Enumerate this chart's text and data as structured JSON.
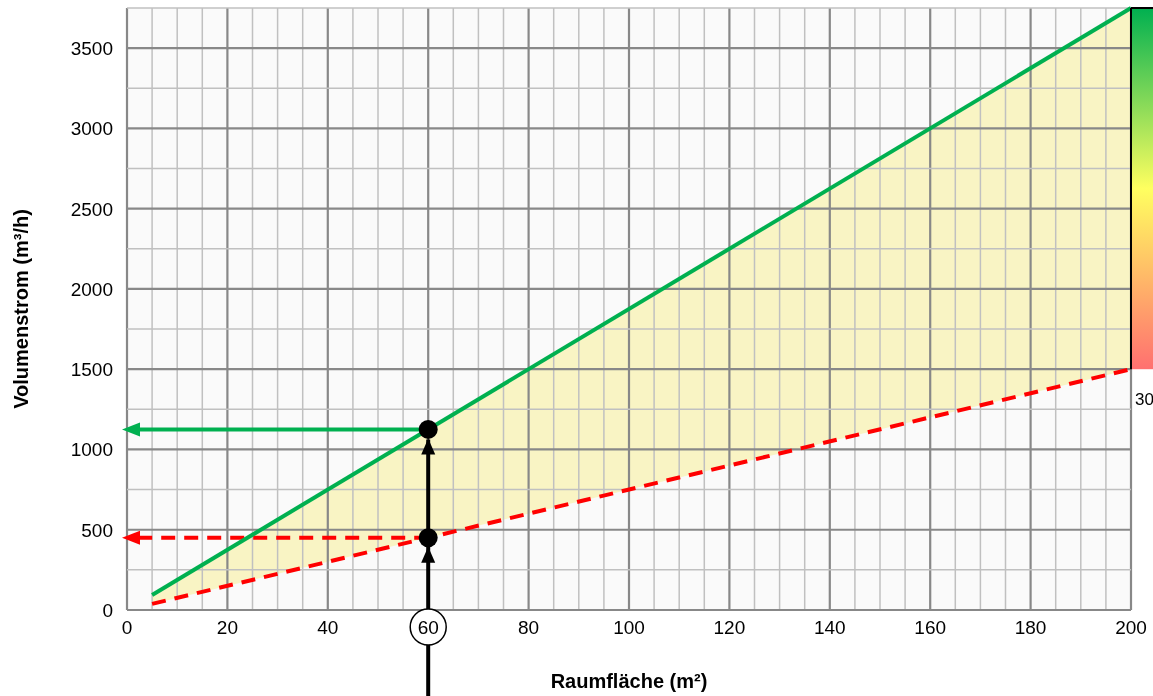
{
  "chart_data": {
    "type": "line",
    "xlabel": "Raumfläche (m²)",
    "ylabel": "Volumenstrom (m³/h)",
    "xlim": [
      0,
      200
    ],
    "ylim": [
      0,
      3750
    ],
    "xticks": [
      0,
      {
        "value": 5,
        "label": null
      },
      {
        "value": 10,
        "label": null
      },
      {
        "value": 15,
        "label": null
      },
      20,
      {
        "value": 25,
        "label": null
      },
      {
        "value": 30,
        "label": null
      },
      {
        "value": 35,
        "label": null
      },
      40,
      {
        "value": 45,
        "label": null
      },
      {
        "value": 50,
        "label": null
      },
      {
        "value": 55,
        "label": null
      },
      60,
      {
        "value": 65,
        "label": null
      },
      {
        "value": 70,
        "label": null
      },
      {
        "value": 75,
        "label": null
      },
      80,
      {
        "value": 85,
        "label": null
      },
      {
        "value": 90,
        "label": null
      },
      {
        "value": 95,
        "label": null
      },
      100,
      {
        "value": 105,
        "label": null
      },
      {
        "value": 110,
        "label": null
      },
      {
        "value": 115,
        "label": null
      },
      120,
      {
        "value": 125,
        "label": null
      },
      {
        "value": 130,
        "label": null
      },
      {
        "value": 135,
        "label": null
      },
      140,
      {
        "value": 145,
        "label": null
      },
      {
        "value": 150,
        "label": null
      },
      {
        "value": 155,
        "label": null
      },
      160,
      {
        "value": 165,
        "label": null
      },
      {
        "value": 170,
        "label": null
      },
      {
        "value": 175,
        "label": null
      },
      180,
      {
        "value": 185,
        "label": null
      },
      {
        "value": 190,
        "label": null
      },
      {
        "value": 195,
        "label": null
      },
      200
    ],
    "yticks": [
      0,
      {
        "value": 250,
        "label": null
      },
      500,
      {
        "value": 750,
        "label": null
      },
      1000,
      {
        "value": 1250,
        "label": null
      },
      1500,
      {
        "value": 1750,
        "label": null
      },
      2000,
      {
        "value": 2250,
        "label": null
      },
      2500,
      {
        "value": 2750,
        "label": null
      },
      3000,
      {
        "value": 3250,
        "label": null
      },
      3500,
      {
        "value": 3750,
        "label": null
      }
    ],
    "grid": true,
    "series": [
      {
        "color": "#00b050",
        "x": [
          5,
          200
        ],
        "values": [
          94,
          3750
        ],
        "lower": [
          38,
          1500
        ],
        "upper": [
          94,
          3750
        ],
        "line_style": "solid"
      },
      {
        "color": "#ff0000",
        "x": [
          5,
          200
        ],
        "values": [
          38,
          1500
        ],
        "line_style": "dashed"
      },
      {
        "type": "scatter",
        "color": "#000000",
        "x": [
          60,
          60
        ],
        "values": [
          1125,
          450
        ],
        "marker": "circle"
      }
    ],
    "ref_lines": [
      {
        "axis": "x",
        "value": 60,
        "color": "#000000",
        "line_style": "solid"
      },
      {
        "axis": "y",
        "value": 1125,
        "color": "#00b050",
        "line_style": "solid"
      },
      {
        "axis": "y",
        "value": 450,
        "color": "#ff0000",
        "line_style": "dashed"
      }
    ],
    "annotations": [
      {
        "text": "30",
        "x": 200,
        "y": 1500
      }
    ]
  }
}
